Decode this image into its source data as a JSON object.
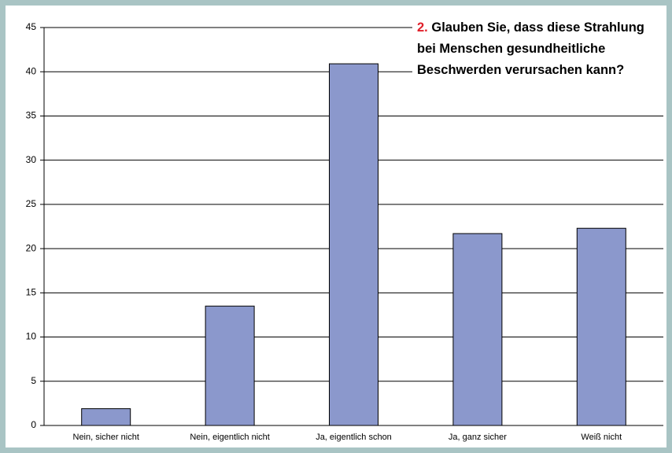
{
  "chart_data": {
    "type": "bar",
    "title_number": "2.",
    "title": [
      "Glauben Sie, dass diese Strahlung",
      "bei Menschen gesundheitliche",
      "Beschwerden verursachen kann?"
    ],
    "categories": [
      "Nein, sicher nicht",
      "Nein, eigentlich nicht",
      "Ja, eigentlich schon",
      "Ja, ganz sicher",
      "Weiß nicht"
    ],
    "values": [
      1.9,
      13.5,
      40.9,
      21.7,
      22.3
    ],
    "color": "#8b98cc",
    "ylim": [
      0,
      45
    ],
    "yticks": [
      0,
      5,
      10,
      15,
      20,
      25,
      30,
      35,
      40,
      45
    ],
    "grid": true
  }
}
